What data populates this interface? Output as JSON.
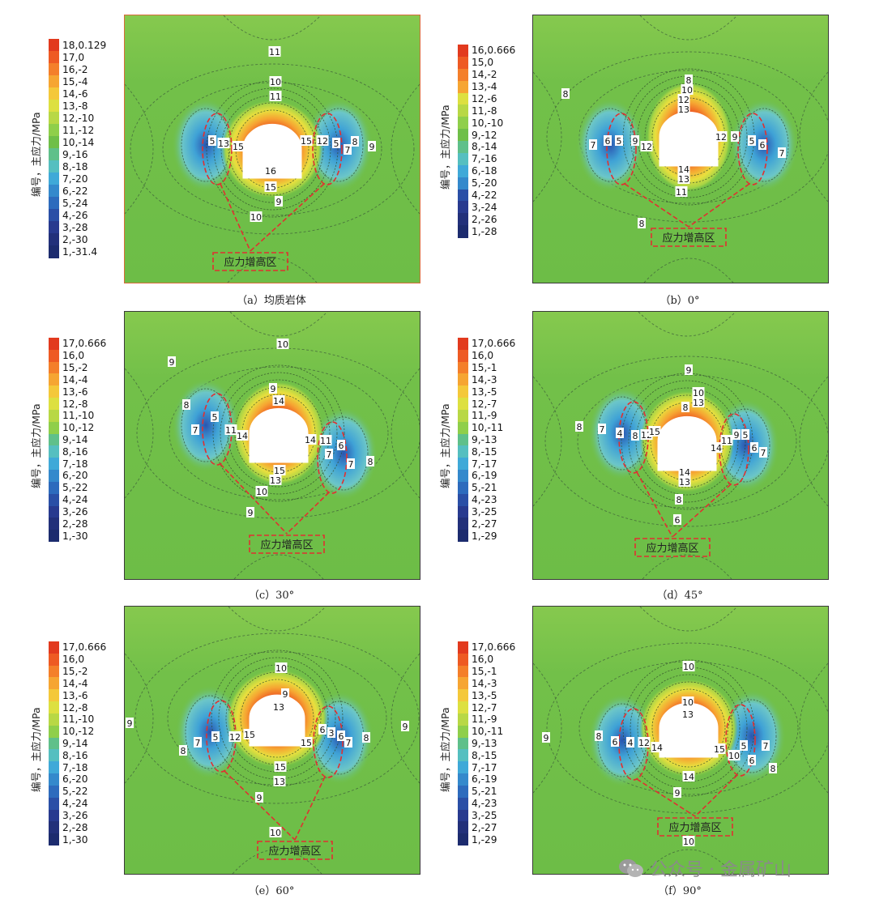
{
  "colorbar_title": "编号，主应力/MPa",
  "stress_zone_label": "应力增高区",
  "watermark": "公众号 · 金属矿山",
  "colors": {
    "background": "#6fbf48",
    "levels": [
      "#e23a1e",
      "#ee5a23",
      "#f47f2a",
      "#f6a532",
      "#f4c83a",
      "#dde040",
      "#b8d845",
      "#8fcf4a",
      "#6fbf48",
      "#5fc08a",
      "#55bfc0",
      "#3fa9d8",
      "#3489cc",
      "#2d6bbd",
      "#2a4fa6",
      "#283a8f",
      "#22307a",
      "#1c2b6e"
    ],
    "stress_zone_outline": "#e03030"
  },
  "panels": [
    {
      "id": "a",
      "caption": "（a）均质岩体",
      "colorbar": [
        "18,0.129",
        "17,0",
        "16,-2",
        "15,-4",
        "14,-6",
        "13,-8",
        "12,-10",
        "11,-12",
        "10,-14",
        "9,-16",
        "8,-18",
        "7,-20",
        "6,-22",
        "5,-24",
        "4,-26",
        "3,-28",
        "2,-30",
        "1,-31.4"
      ],
      "contour_labels": [
        "11",
        "10",
        "11",
        "5",
        "13",
        "15",
        "15",
        "12",
        "5",
        "7",
        "8",
        "9",
        "16",
        "15",
        "9",
        "10"
      ]
    },
    {
      "id": "b",
      "caption": "（b）0°",
      "colorbar": [
        "16,0.666",
        "15,0",
        "14,-2",
        "13,-4",
        "12,-6",
        "11,-8",
        "10,-10",
        "9,-12",
        "8,-14",
        "7,-16",
        "6,-18",
        "5,-20",
        "4,-22",
        "3,-24",
        "2,-26",
        "1,-28"
      ],
      "contour_labels": [
        "8",
        "8",
        "10",
        "12",
        "13",
        "7",
        "6",
        "5",
        "9",
        "12",
        "12",
        "9",
        "5",
        "6",
        "7",
        "14",
        "13",
        "11",
        "8"
      ]
    },
    {
      "id": "c",
      "caption": "（c）30°",
      "colorbar": [
        "17,0.666",
        "16,0",
        "15,-2",
        "14,-4",
        "13,-6",
        "12,-8",
        "11,-10",
        "10,-12",
        "9,-14",
        "8,-16",
        "7,-18",
        "6,-20",
        "5,-22",
        "4,-24",
        "3,-26",
        "2,-28",
        "1,-30"
      ],
      "contour_labels": [
        "10",
        "9",
        "9",
        "14",
        "8",
        "5",
        "7",
        "11",
        "14",
        "14",
        "11",
        "6",
        "7",
        "7",
        "8",
        "15",
        "13",
        "10",
        "9"
      ]
    },
    {
      "id": "d",
      "caption": "（d）45°",
      "colorbar": [
        "17,0.666",
        "16,0",
        "15,-1",
        "14,-3",
        "13,-5",
        "12,-7",
        "11,-9",
        "10,-11",
        "9,-13",
        "8,-15",
        "7,-17",
        "6,-19",
        "5,-21",
        "4,-23",
        "3,-25",
        "2,-27",
        "1,-29"
      ],
      "contour_labels": [
        "9",
        "8",
        "10",
        "13",
        "8",
        "7",
        "4",
        "8",
        "12",
        "15",
        "14",
        "11",
        "9",
        "5",
        "6",
        "7",
        "14",
        "13",
        "8",
        "6"
      ]
    },
    {
      "id": "e",
      "caption": "（e）60°",
      "colorbar": [
        "17,0.666",
        "16,0",
        "15,-2",
        "14,-4",
        "13,-6",
        "12,-8",
        "11,-10",
        "10,-12",
        "9,-14",
        "8,-16",
        "7,-18",
        "6,-20",
        "5,-22",
        "4,-24",
        "3,-26",
        "2,-28",
        "1,-30"
      ],
      "contour_labels": [
        "10",
        "9",
        "13",
        "9",
        "7",
        "8",
        "5",
        "12",
        "15",
        "15",
        "6",
        "3",
        "6",
        "7",
        "8",
        "9",
        "15",
        "13",
        "9",
        "10"
      ]
    },
    {
      "id": "f",
      "caption": "（f）90°",
      "colorbar": [
        "17,0.666",
        "16,0",
        "15,-1",
        "14,-3",
        "13,-5",
        "12,-7",
        "11,-9",
        "10,-11",
        "9,-13",
        "8,-15",
        "7,-17",
        "6,-19",
        "5,-21",
        "4,-23",
        "3,-25",
        "2,-27",
        "1,-29"
      ],
      "contour_labels": [
        "10",
        "10",
        "13",
        "9",
        "8",
        "6",
        "4",
        "12",
        "14",
        "15",
        "10",
        "5",
        "7",
        "6",
        "8",
        "14",
        "9",
        "10"
      ]
    }
  ]
}
